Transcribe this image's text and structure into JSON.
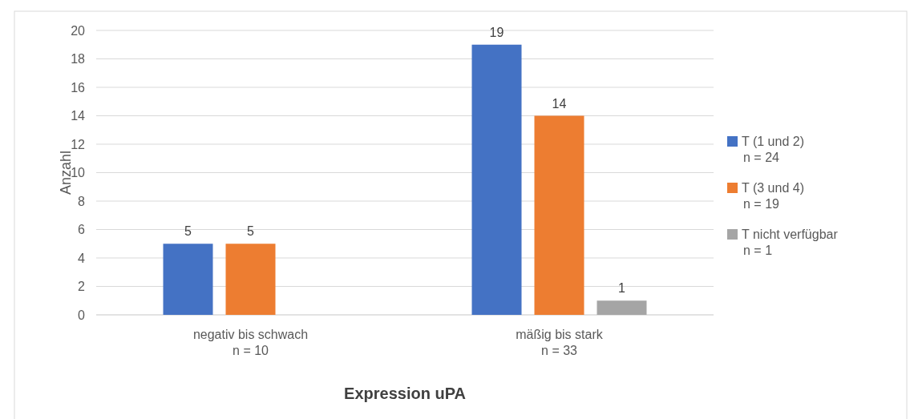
{
  "chart_data": {
    "type": "bar",
    "xlabel": "Expression uPA",
    "ylabel": "Anzahl",
    "categories": [
      "negativ bis schwach\nn = 10",
      "mäßig bis stark\nn = 33"
    ],
    "series": [
      {
        "name": "T (1 und 2)\nn = 24",
        "color": "#4472c4",
        "values": [
          5,
          19
        ]
      },
      {
        "name": "T (3 und 4)\nn = 19",
        "color": "#ed7d31",
        "values": [
          5,
          14
        ]
      },
      {
        "name": "T nicht verfügbar\nn = 1",
        "color": "#a5a5a5",
        "values": [
          null,
          1
        ]
      }
    ],
    "ylim": [
      0,
      20
    ],
    "yticks": [
      0,
      2,
      4,
      6,
      8,
      10,
      12,
      14,
      16,
      18,
      20
    ],
    "grid": "y",
    "legend": "right",
    "data_labels": true
  }
}
